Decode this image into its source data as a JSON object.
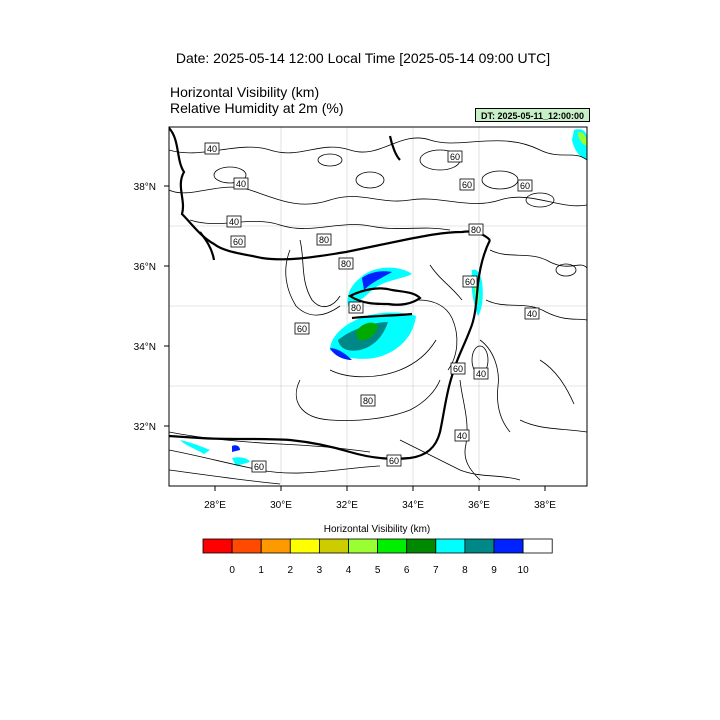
{
  "header": {
    "date_line": "Date: 2025-05-14  12:00 Local Time [2025-05-14  09:00 UTC]",
    "title_line_1": "Horizontal Visibility   (km)",
    "title_line_2": "Relative Humidity at 2m   (%)",
    "dt_badge": "DT: 2025-05-11_12:00:00"
  },
  "map": {
    "lon_ticks": [
      "28°E",
      "30°E",
      "32°E",
      "34°E",
      "36°E",
      "38°E"
    ],
    "lat_ticks": [
      "38°N",
      "36°N",
      "34°N",
      "32°N"
    ],
    "contour_labels": [
      "40",
      "40",
      "40",
      "60",
      "60",
      "60",
      "60",
      "80",
      "80",
      "80",
      "60",
      "40",
      "60",
      "80",
      "60",
      "40",
      "80",
      "40",
      "60",
      "60"
    ]
  },
  "colorbar": {
    "title": "Horizontal Visibility  (km)",
    "colors": [
      "#ff0000",
      "#ff4a00",
      "#ff9900",
      "#ffff00",
      "#cccc00",
      "#99ff33",
      "#00ee00",
      "#008800",
      "#00ffff",
      "#008888",
      "#0022ff",
      "#ffffff"
    ],
    "labels": [
      "0",
      "1",
      "2",
      "3",
      "4",
      "5",
      "6",
      "7",
      "8",
      "9",
      "10"
    ]
  }
}
